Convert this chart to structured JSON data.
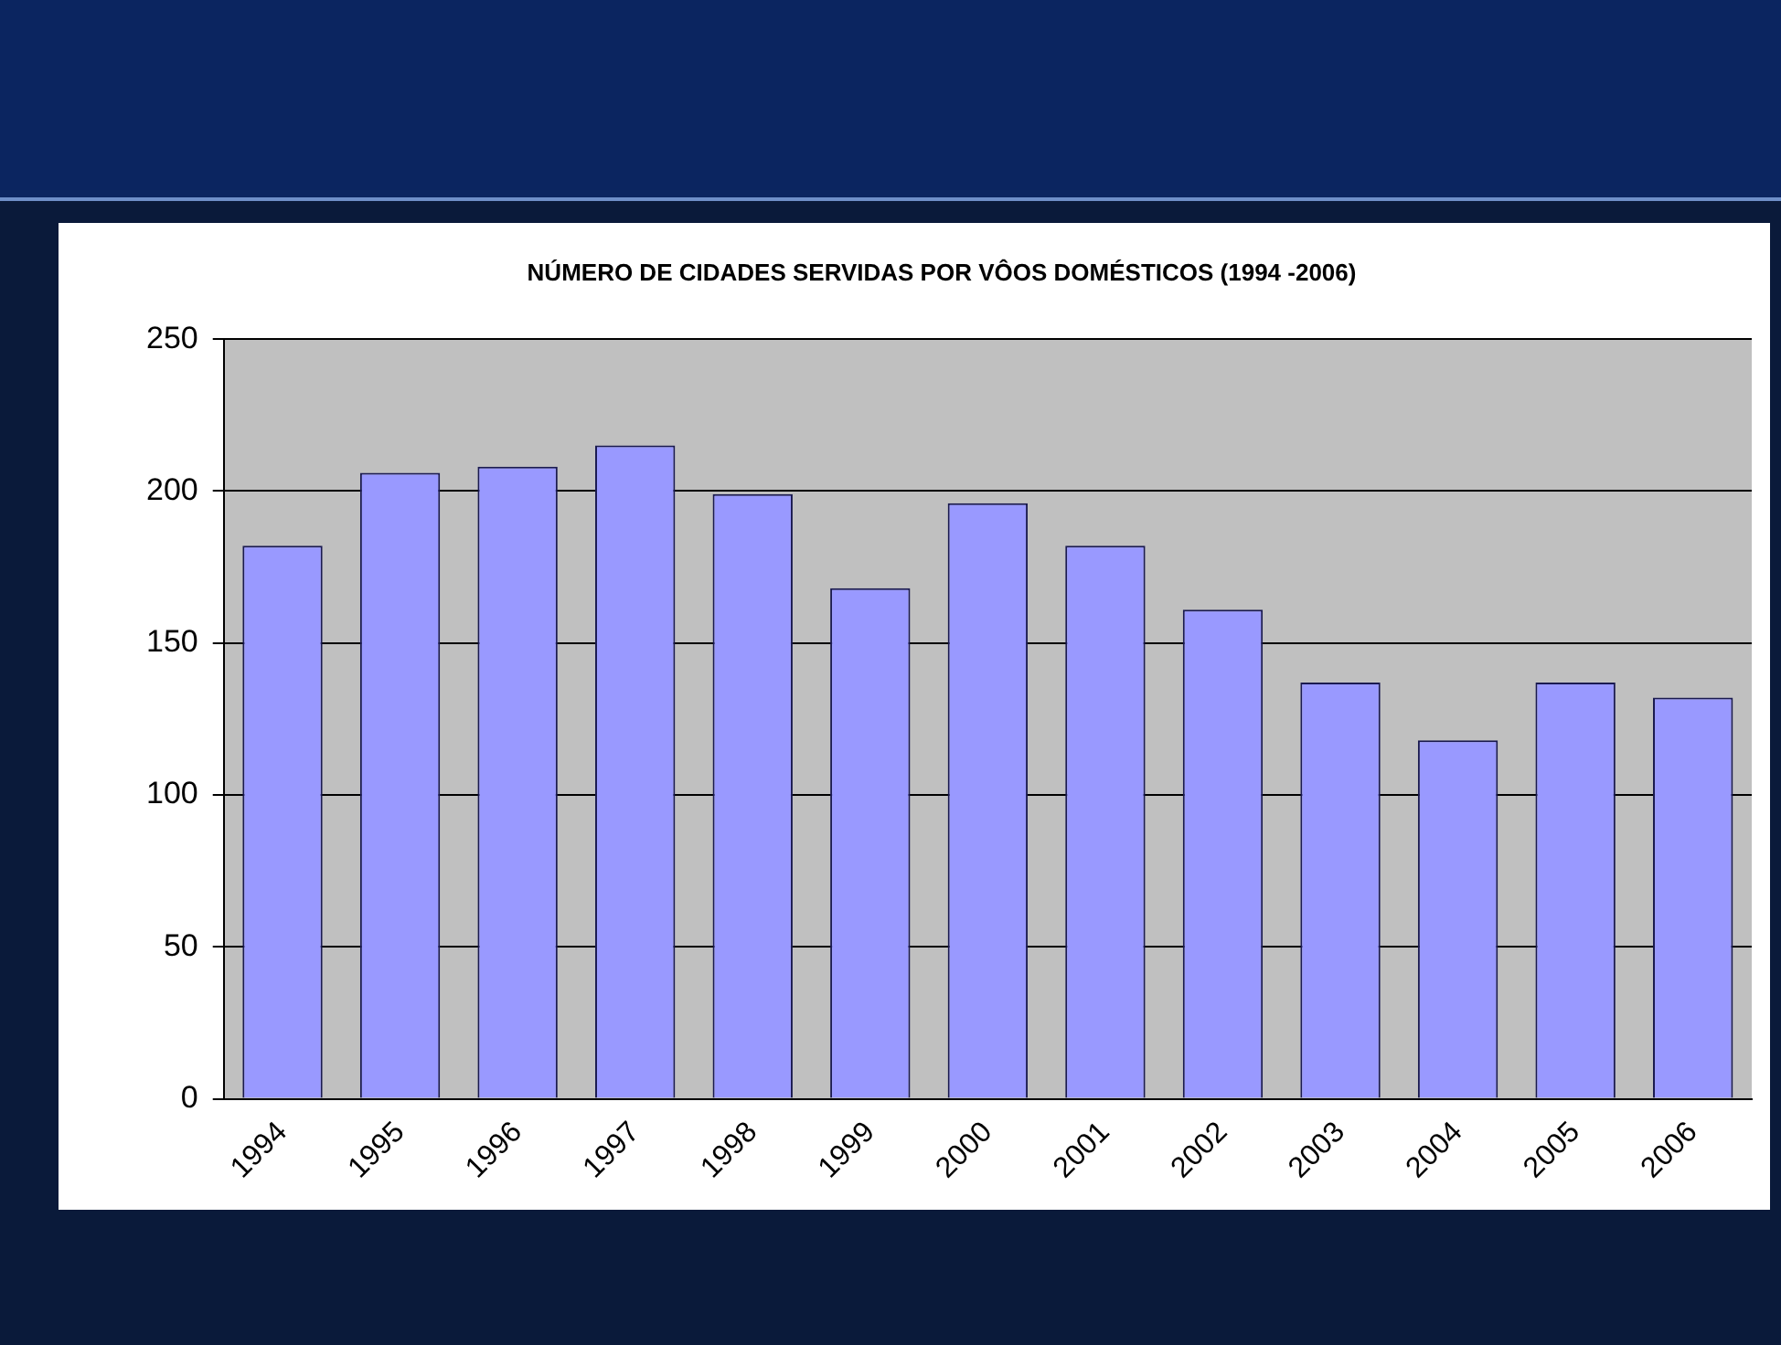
{
  "chart_data": {
    "type": "bar",
    "title": "NÚMERO DE CIDADES SERVIDAS POR VÔOS DOMÉSTICOS (1994 -2006)",
    "categories": [
      "1994",
      "1995",
      "1996",
      "1997",
      "1998",
      "1999",
      "2000",
      "2001",
      "2002",
      "2003",
      "2004",
      "2005",
      "2006"
    ],
    "values": [
      182,
      206,
      208,
      215,
      199,
      168,
      196,
      182,
      161,
      137,
      118,
      137,
      132
    ],
    "color": "#9999ff",
    "ylim": [
      0,
      250
    ],
    "yticks": [
      0,
      50,
      100,
      150,
      200,
      250
    ],
    "grid": "y",
    "legend": false
  }
}
